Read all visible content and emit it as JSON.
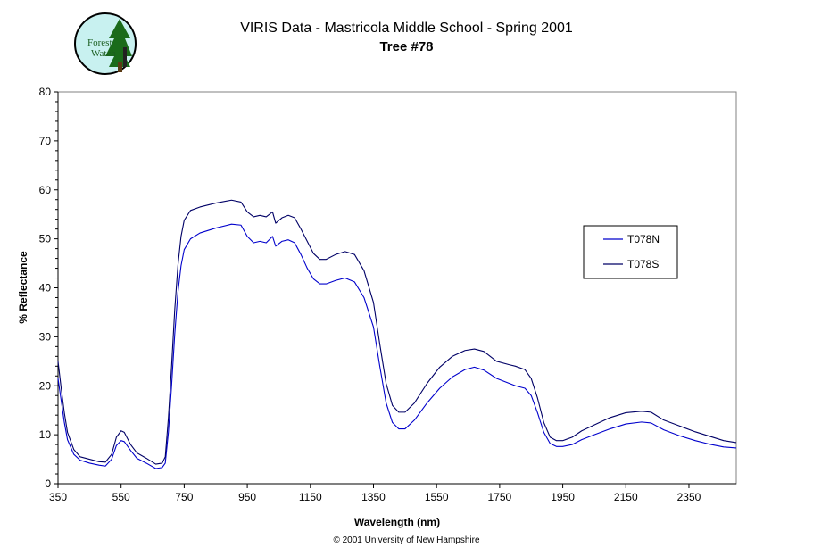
{
  "logo": {
    "icon": "forest-watch-logo",
    "text_line1": "Forest",
    "text_line2": "Watch",
    "colors": {
      "background": "#c8f1f0",
      "tree": "#1a6b1a",
      "trunk": "#5a3a14",
      "figure": "#222222",
      "text": "#1b5e20"
    }
  },
  "footer": {
    "copyright": "© 2001 University of New Hampshire"
  },
  "chart_data": {
    "type": "line",
    "title": "VIRIS Data - Mastricola Middle School - Spring 2001",
    "subtitle": "Tree #78",
    "xlabel": "Wavelength (nm)",
    "ylabel": "% Reflectance",
    "xlim": [
      350,
      2500
    ],
    "ylim": [
      0,
      80
    ],
    "x_ticks": [
      350,
      550,
      750,
      950,
      1150,
      1350,
      1550,
      1750,
      1950,
      2150,
      2350
    ],
    "y_ticks": [
      0,
      10,
      20,
      30,
      40,
      50,
      60,
      70,
      80
    ],
    "grid": false,
    "legend_position": "right",
    "series": [
      {
        "name": "T078N",
        "color": "#0000cc",
        "points": [
          [
            350,
            21.5
          ],
          [
            360,
            17.0
          ],
          [
            370,
            12.5
          ],
          [
            380,
            9.0
          ],
          [
            400,
            6.0
          ],
          [
            420,
            4.8
          ],
          [
            450,
            4.2
          ],
          [
            480,
            3.8
          ],
          [
            500,
            3.6
          ],
          [
            520,
            5.0
          ],
          [
            535,
            7.8
          ],
          [
            550,
            8.8
          ],
          [
            560,
            8.6
          ],
          [
            580,
            6.8
          ],
          [
            600,
            5.2
          ],
          [
            630,
            4.2
          ],
          [
            660,
            3.1
          ],
          [
            680,
            3.3
          ],
          [
            690,
            4.2
          ],
          [
            700,
            10.5
          ],
          [
            710,
            20.0
          ],
          [
            720,
            30.5
          ],
          [
            730,
            39.0
          ],
          [
            740,
            44.5
          ],
          [
            750,
            47.8
          ],
          [
            770,
            50.0
          ],
          [
            800,
            51.2
          ],
          [
            850,
            52.2
          ],
          [
            900,
            53.0
          ],
          [
            930,
            52.8
          ],
          [
            950,
            50.5
          ],
          [
            970,
            49.2
          ],
          [
            990,
            49.5
          ],
          [
            1010,
            49.2
          ],
          [
            1030,
            50.5
          ],
          [
            1040,
            48.5
          ],
          [
            1060,
            49.5
          ],
          [
            1080,
            49.8
          ],
          [
            1100,
            49.2
          ],
          [
            1120,
            46.8
          ],
          [
            1140,
            44.0
          ],
          [
            1160,
            41.8
          ],
          [
            1180,
            40.8
          ],
          [
            1200,
            40.8
          ],
          [
            1230,
            41.5
          ],
          [
            1260,
            42.0
          ],
          [
            1290,
            41.2
          ],
          [
            1320,
            38.0
          ],
          [
            1350,
            32.0
          ],
          [
            1370,
            24.0
          ],
          [
            1390,
            16.5
          ],
          [
            1410,
            12.5
          ],
          [
            1430,
            11.2
          ],
          [
            1450,
            11.2
          ],
          [
            1480,
            13.0
          ],
          [
            1520,
            16.5
          ],
          [
            1560,
            19.5
          ],
          [
            1600,
            21.8
          ],
          [
            1640,
            23.3
          ],
          [
            1670,
            23.8
          ],
          [
            1700,
            23.2
          ],
          [
            1740,
            21.5
          ],
          [
            1780,
            20.5
          ],
          [
            1800,
            20.0
          ],
          [
            1830,
            19.5
          ],
          [
            1850,
            18.0
          ],
          [
            1870,
            14.5
          ],
          [
            1890,
            10.5
          ],
          [
            1910,
            8.2
          ],
          [
            1930,
            7.6
          ],
          [
            1950,
            7.6
          ],
          [
            1980,
            8.0
          ],
          [
            2010,
            9.0
          ],
          [
            2050,
            10.0
          ],
          [
            2100,
            11.2
          ],
          [
            2150,
            12.2
          ],
          [
            2200,
            12.6
          ],
          [
            2230,
            12.4
          ],
          [
            2270,
            11.0
          ],
          [
            2320,
            9.8
          ],
          [
            2370,
            8.8
          ],
          [
            2420,
            8.0
          ],
          [
            2460,
            7.5
          ],
          [
            2500,
            7.3
          ]
        ]
      },
      {
        "name": "T078S",
        "color": "#000066",
        "points": [
          [
            350,
            25.0
          ],
          [
            360,
            19.5
          ],
          [
            370,
            14.5
          ],
          [
            380,
            10.5
          ],
          [
            400,
            7.0
          ],
          [
            420,
            5.5
          ],
          [
            450,
            5.0
          ],
          [
            480,
            4.5
          ],
          [
            500,
            4.4
          ],
          [
            520,
            6.0
          ],
          [
            535,
            9.5
          ],
          [
            550,
            10.8
          ],
          [
            560,
            10.5
          ],
          [
            580,
            8.0
          ],
          [
            600,
            6.3
          ],
          [
            630,
            5.2
          ],
          [
            660,
            4.0
          ],
          [
            680,
            4.2
          ],
          [
            690,
            5.5
          ],
          [
            700,
            13.5
          ],
          [
            710,
            24.0
          ],
          [
            720,
            35.5
          ],
          [
            730,
            44.5
          ],
          [
            740,
            50.5
          ],
          [
            750,
            53.8
          ],
          [
            770,
            55.8
          ],
          [
            800,
            56.5
          ],
          [
            850,
            57.3
          ],
          [
            900,
            57.9
          ],
          [
            930,
            57.5
          ],
          [
            950,
            55.5
          ],
          [
            970,
            54.5
          ],
          [
            990,
            54.8
          ],
          [
            1010,
            54.5
          ],
          [
            1030,
            55.5
          ],
          [
            1040,
            53.2
          ],
          [
            1060,
            54.3
          ],
          [
            1080,
            54.8
          ],
          [
            1100,
            54.3
          ],
          [
            1120,
            52.0
          ],
          [
            1140,
            49.5
          ],
          [
            1160,
            47.0
          ],
          [
            1180,
            45.8
          ],
          [
            1200,
            45.8
          ],
          [
            1230,
            46.8
          ],
          [
            1260,
            47.4
          ],
          [
            1290,
            46.8
          ],
          [
            1320,
            43.5
          ],
          [
            1350,
            37.0
          ],
          [
            1370,
            28.5
          ],
          [
            1390,
            20.5
          ],
          [
            1410,
            16.0
          ],
          [
            1430,
            14.6
          ],
          [
            1450,
            14.6
          ],
          [
            1480,
            16.5
          ],
          [
            1520,
            20.5
          ],
          [
            1560,
            23.8
          ],
          [
            1600,
            26.0
          ],
          [
            1640,
            27.2
          ],
          [
            1670,
            27.5
          ],
          [
            1700,
            27.0
          ],
          [
            1740,
            25.0
          ],
          [
            1780,
            24.3
          ],
          [
            1800,
            24.0
          ],
          [
            1830,
            23.3
          ],
          [
            1850,
            21.5
          ],
          [
            1870,
            17.5
          ],
          [
            1890,
            12.5
          ],
          [
            1910,
            9.5
          ],
          [
            1930,
            8.8
          ],
          [
            1950,
            8.8
          ],
          [
            1980,
            9.5
          ],
          [
            2010,
            10.8
          ],
          [
            2050,
            12.0
          ],
          [
            2100,
            13.5
          ],
          [
            2150,
            14.5
          ],
          [
            2200,
            14.8
          ],
          [
            2230,
            14.6
          ],
          [
            2270,
            13.0
          ],
          [
            2320,
            11.8
          ],
          [
            2370,
            10.6
          ],
          [
            2420,
            9.6
          ],
          [
            2460,
            8.8
          ],
          [
            2500,
            8.4
          ]
        ]
      }
    ]
  }
}
